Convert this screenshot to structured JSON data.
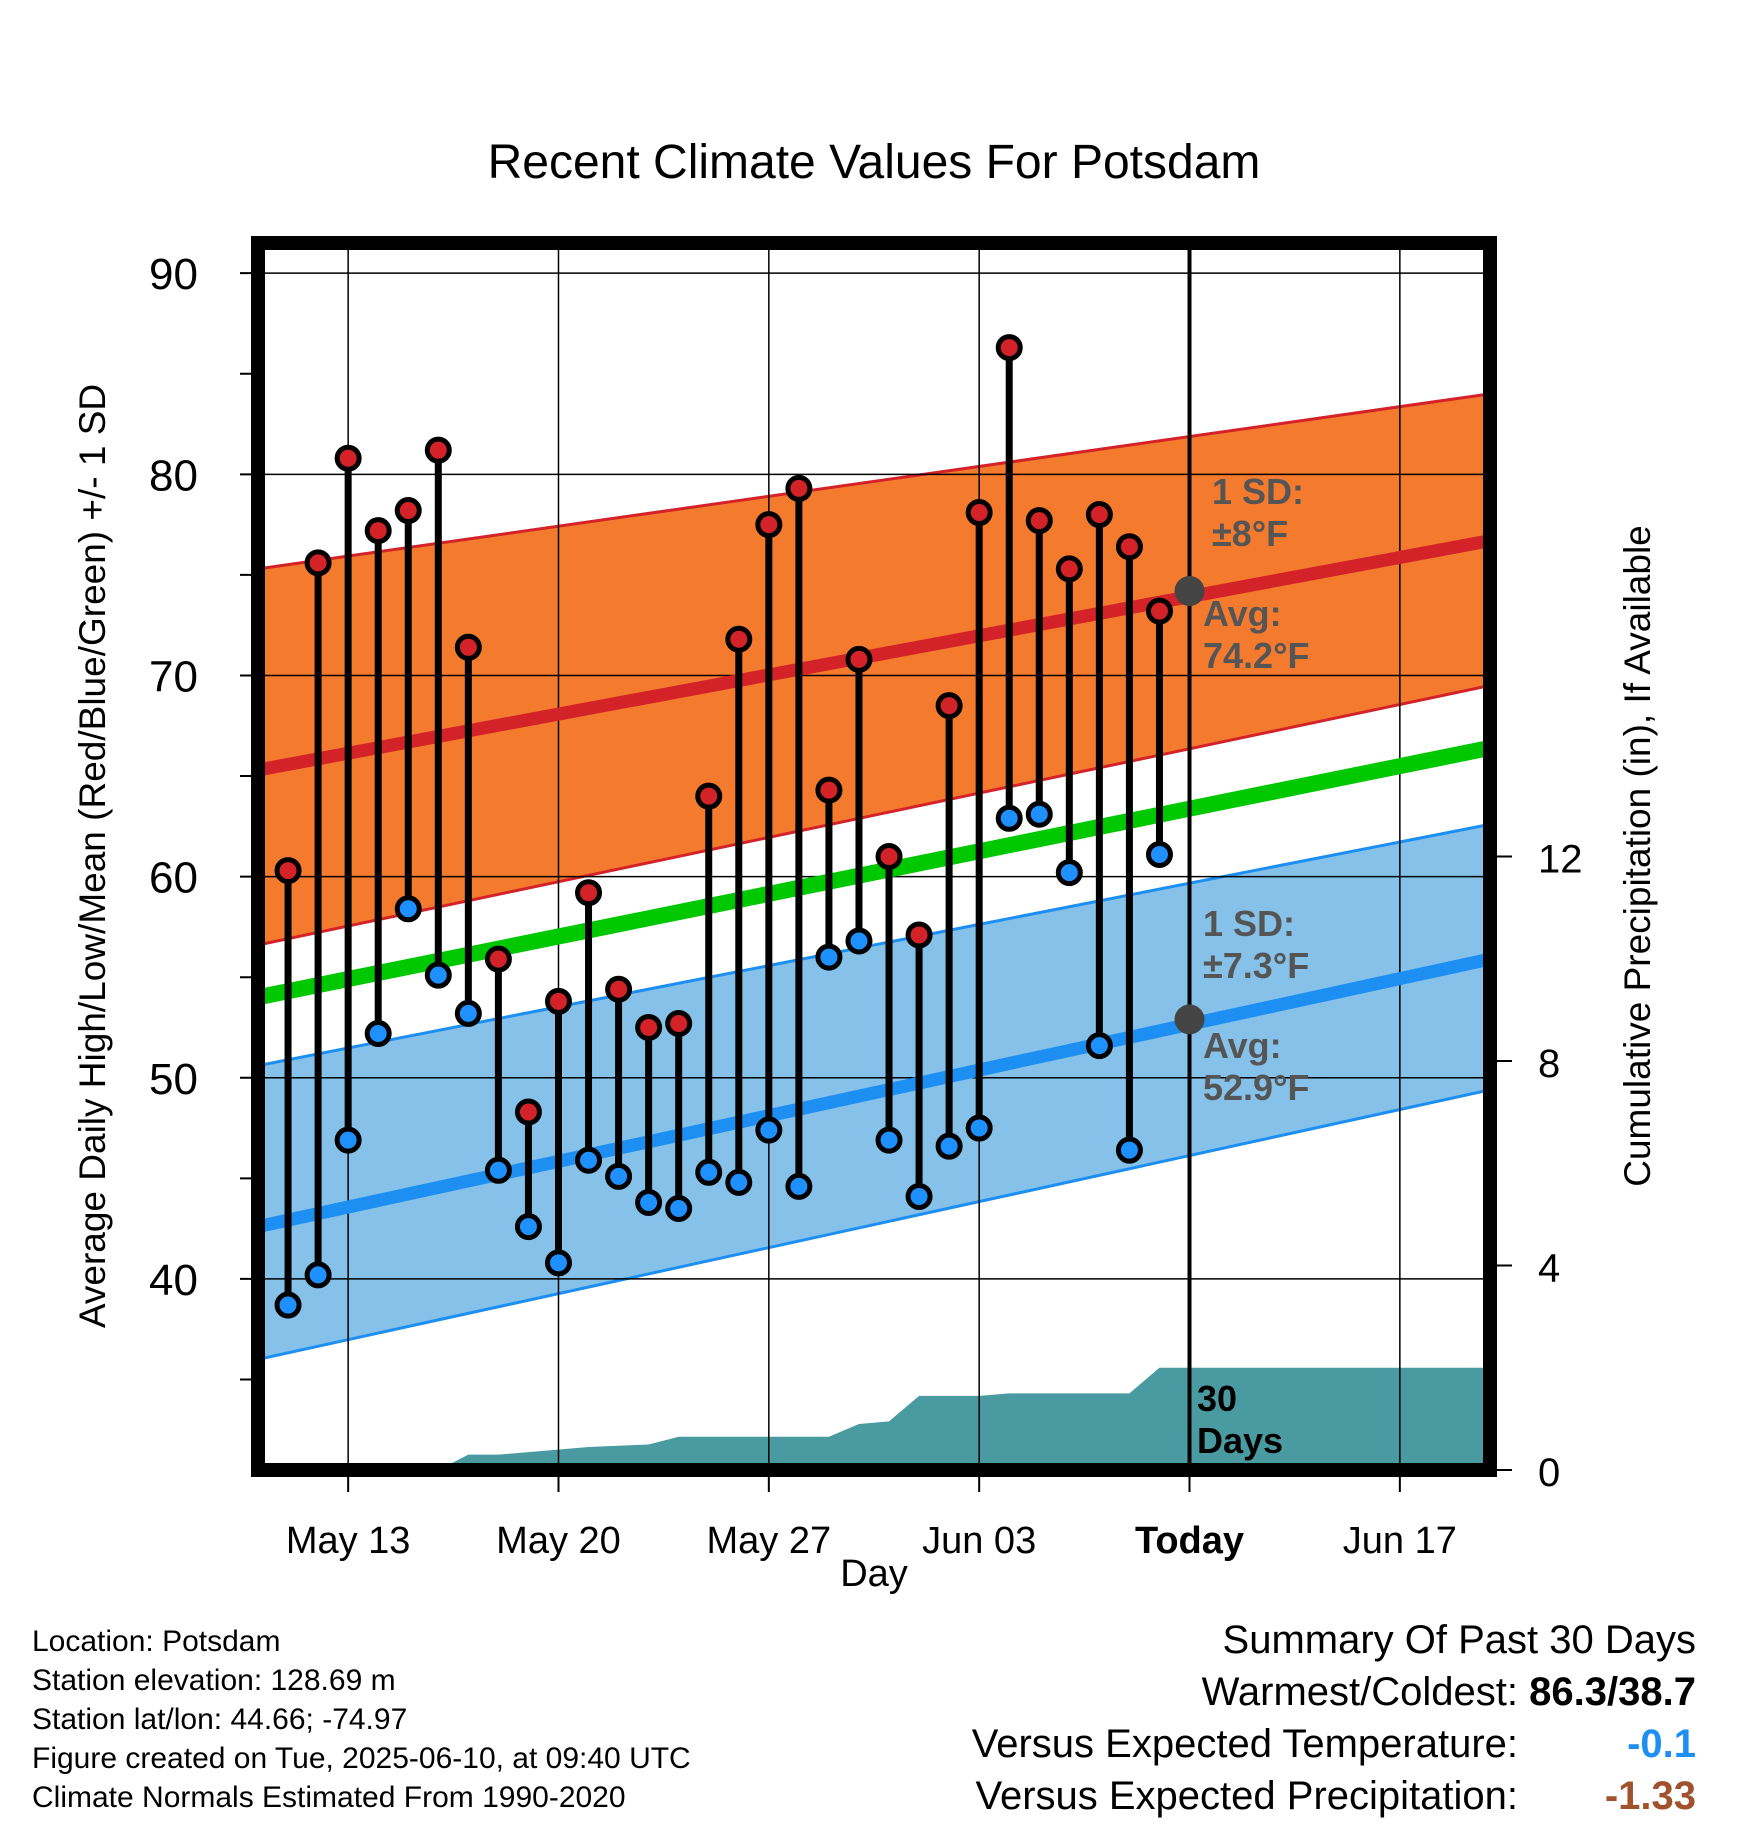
{
  "chart_data": {
    "type": "line",
    "title": "Recent Climate Values For Potsdam",
    "xlabel": "Day",
    "ylabel": "Average Daily High/Low/Mean (Red/Blue/Green) +/- 1 SD",
    "y2label": "Cumulative Precipitation (in), If Available",
    "ylim": [
      30.5,
      91.5
    ],
    "y2lim": [
      0,
      24
    ],
    "yticks": [
      40,
      50,
      60,
      70,
      80,
      90
    ],
    "yticklabels": [
      "40",
      "50",
      "60",
      "70",
      "80",
      "90"
    ],
    "y2ticks": [
      0,
      4,
      8,
      12
    ],
    "y2ticklabels": [
      "0",
      "4",
      "8",
      "12"
    ],
    "xlim": [
      "2025-05-10",
      "2025-06-20"
    ],
    "xticks": [
      "2025-05-13",
      "2025-05-20",
      "2025-05-27",
      "2025-06-03",
      "2025-06-10",
      "2025-06-17"
    ],
    "xticklabels": [
      "May 13",
      "May 20",
      "May 27",
      "Jun 03",
      "Today",
      "Jun 17"
    ],
    "today": "2025-06-10",
    "grid": true,
    "colors": {
      "high_band": "#f47a2e",
      "high_line": "#d32228",
      "high_edge": "#d32228",
      "low_band": "#85c1e9",
      "low_line": "#1e8ff2",
      "low_edge": "#1e8ff2",
      "mean_line": "#00c800",
      "precip": "#4a9ba1",
      "high_dot": "#d32228",
      "low_dot": "#1e90ff",
      "annotation": "#555555",
      "today_dot": "#444444"
    },
    "normals": {
      "x": [
        "2025-05-10",
        "2025-06-20"
      ],
      "high_mean": [
        65.3,
        76.7
      ],
      "high_upper": [
        75.3,
        84.0
      ],
      "high_lower": [
        56.6,
        69.5
      ],
      "low_mean": [
        42.6,
        55.9
      ],
      "low_upper": [
        50.6,
        62.6
      ],
      "low_lower": [
        36.0,
        49.4
      ],
      "mean": [
        54.0,
        66.4
      ]
    },
    "series": [
      {
        "name": "High",
        "x": [
          "2025-05-11",
          "2025-05-12",
          "2025-05-13",
          "2025-05-14",
          "2025-05-15",
          "2025-05-16",
          "2025-05-17",
          "2025-05-18",
          "2025-05-19",
          "2025-05-20",
          "2025-05-21",
          "2025-05-22",
          "2025-05-23",
          "2025-05-24",
          "2025-05-25",
          "2025-05-26",
          "2025-05-27",
          "2025-05-28",
          "2025-05-29",
          "2025-05-30",
          "2025-05-31",
          "2025-06-01",
          "2025-06-02",
          "2025-06-03",
          "2025-06-04",
          "2025-06-05",
          "2025-06-06",
          "2025-06-07",
          "2025-06-08",
          "2025-06-09"
        ],
        "values": [
          60.3,
          75.6,
          80.8,
          77.2,
          78.2,
          81.2,
          71.4,
          55.9,
          48.3,
          53.8,
          59.2,
          54.4,
          52.5,
          52.7,
          64.0,
          71.8,
          77.5,
          79.3,
          64.3,
          70.8,
          61.0,
          57.1,
          68.5,
          78.1,
          86.3,
          77.7,
          75.3,
          78.0,
          76.4,
          73.2
        ]
      },
      {
        "name": "Low",
        "x": [
          "2025-05-11",
          "2025-05-12",
          "2025-05-13",
          "2025-05-14",
          "2025-05-15",
          "2025-05-16",
          "2025-05-17",
          "2025-05-18",
          "2025-05-19",
          "2025-05-20",
          "2025-05-21",
          "2025-05-22",
          "2025-05-23",
          "2025-05-24",
          "2025-05-25",
          "2025-05-26",
          "2025-05-27",
          "2025-05-28",
          "2025-05-29",
          "2025-05-30",
          "2025-05-31",
          "2025-06-01",
          "2025-06-02",
          "2025-06-03",
          "2025-06-04",
          "2025-06-05",
          "2025-06-06",
          "2025-06-07",
          "2025-06-08",
          "2025-06-09"
        ],
        "values": [
          38.7,
          40.2,
          46.9,
          52.2,
          58.4,
          55.1,
          53.2,
          45.4,
          42.6,
          40.8,
          45.9,
          45.1,
          43.8,
          43.5,
          45.3,
          44.8,
          47.4,
          44.6,
          56.0,
          56.8,
          46.9,
          44.1,
          46.6,
          47.5,
          62.9,
          63.1,
          60.2,
          51.6,
          46.4,
          61.1
        ]
      },
      {
        "name": "Cumulative Precipitation",
        "x": [
          "2025-05-10",
          "2025-05-16",
          "2025-05-17",
          "2025-05-18",
          "2025-05-21",
          "2025-05-23",
          "2025-05-24",
          "2025-05-29",
          "2025-05-30",
          "2025-05-31",
          "2025-06-01",
          "2025-06-02",
          "2025-06-03",
          "2025-06-04",
          "2025-06-06",
          "2025-06-08",
          "2025-06-09",
          "2025-06-20"
        ],
        "values": [
          0,
          0,
          0.3,
          0.3,
          0.45,
          0.5,
          0.65,
          0.65,
          0.9,
          0.95,
          1.45,
          1.45,
          1.45,
          1.5,
          1.5,
          1.5,
          2.0,
          2.0
        ]
      }
    ],
    "annotations": [
      {
        "line1": "1 SD:",
        "line2": "±8°F"
      },
      {
        "line1": "Avg:",
        "line2": "74.2°F",
        "value": 74.2
      },
      {
        "line1": "1 SD:",
        "line2": "±7.3°F"
      },
      {
        "line1": "Avg:",
        "line2": "52.9°F",
        "value": 52.9
      },
      {
        "line1": "30",
        "line2": "Days"
      }
    ]
  },
  "info": {
    "location": "Location: Potsdam",
    "elevation": "Station elevation: 128.69 m",
    "latlon": "Station lat/lon: 44.66; -74.97",
    "created": "Figure created on Tue, 2025-06-10, at 09:40 UTC",
    "normals": "Climate Normals Estimated From 1990-2020"
  },
  "summary": {
    "title": "Summary Of Past 30 Days",
    "warmest_label": "Warmest/Coldest:",
    "warmest_value": "86.3/38.7",
    "temp_label": "Versus Expected Temperature:",
    "temp_value": "-0.1",
    "temp_color": "#1e8ff2",
    "precip_label": "Versus Expected Precipitation:",
    "precip_value": "-1.33",
    "precip_color": "#a0522d"
  }
}
